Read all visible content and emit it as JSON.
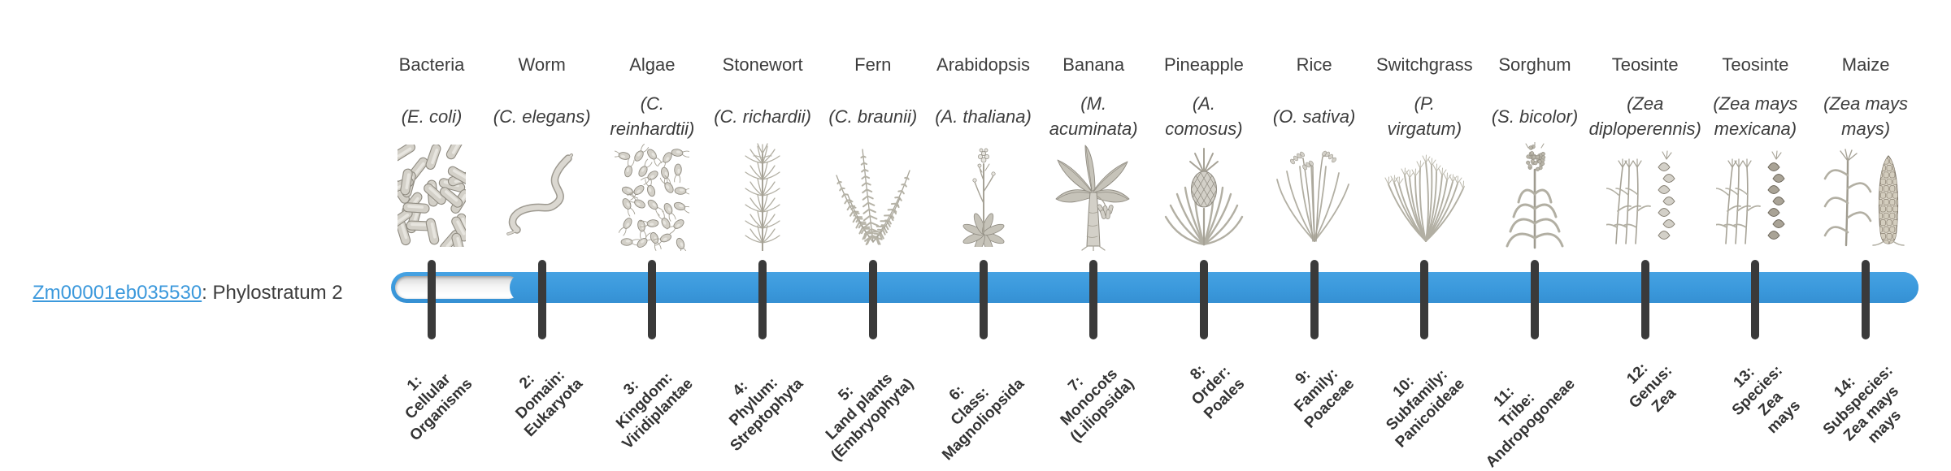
{
  "title": {
    "gene_id": "Zm00001eb035530",
    "suffix": ": Phylostratum 2"
  },
  "bar": {
    "highlighted_phylostratum": 2,
    "total_strata": 14,
    "unfilled_strata": [
      1
    ],
    "filled_strata_from": 2,
    "filled_strata_to": 14
  },
  "colors": {
    "bar": "#3b99dc",
    "tick": "#3a3a3a",
    "link": "#3c99dc",
    "text": "#3d3d3d",
    "stratum": "#333333"
  },
  "columns": [
    {
      "name": "Bacteria",
      "sci_lines": [
        "(E. coli)"
      ],
      "icon": "bacteria",
      "stratum_lines": [
        "1:",
        "Cellular",
        "Organisms"
      ]
    },
    {
      "name": "Worm",
      "sci_lines": [
        "(C. elegans)"
      ],
      "icon": "worm",
      "stratum_lines": [
        "2:",
        "Domain:",
        "Eukaryota"
      ]
    },
    {
      "name": "Algae",
      "sci_lines": [
        "(C.",
        "reinhardtii)"
      ],
      "icon": "algae",
      "stratum_lines": [
        "3:",
        "Kingdom:",
        "Viridiplantae"
      ]
    },
    {
      "name": "Stonewort",
      "sci_lines": [
        "(C. richardii)"
      ],
      "icon": "stonewort",
      "stratum_lines": [
        "4:",
        "Phylum:",
        "Streptophyta"
      ]
    },
    {
      "name": "Fern",
      "sci_lines": [
        "(C. braunii)"
      ],
      "icon": "fern",
      "stratum_lines": [
        "5:",
        "Land plants",
        "(Embryophyta)"
      ]
    },
    {
      "name": "Arabidopsis",
      "sci_lines": [
        "(A. thaliana)"
      ],
      "icon": "arabidopsis",
      "stratum_lines": [
        "6:",
        "Class:",
        "Magnoliopsida"
      ]
    },
    {
      "name": "Banana",
      "sci_lines": [
        "(M.",
        "acuminata)"
      ],
      "icon": "banana",
      "stratum_lines": [
        "7:",
        "Monocots",
        "(Liliopsida)"
      ]
    },
    {
      "name": "Pineapple",
      "sci_lines": [
        "(A.",
        "comosus)"
      ],
      "icon": "pineapple",
      "stratum_lines": [
        "8:",
        "Order:",
        "Poales"
      ]
    },
    {
      "name": "Rice",
      "sci_lines": [
        "(O. sativa)"
      ],
      "icon": "rice",
      "stratum_lines": [
        "9:",
        "Family:",
        "Poaceae"
      ]
    },
    {
      "name": "Switchgrass",
      "sci_lines": [
        "(P.",
        "virgatum)"
      ],
      "icon": "switchgrass",
      "stratum_lines": [
        "10:",
        "Subfamily:",
        "Panicoideae"
      ]
    },
    {
      "name": "Sorghum",
      "sci_lines": [
        "(S. bicolor)"
      ],
      "icon": "sorghum",
      "stratum_lines": [
        "11:",
        "Tribe:",
        "Andropogoneae"
      ]
    },
    {
      "name": "Teosinte",
      "sci_lines": [
        "(Zea",
        "diploperennis)"
      ],
      "icon": "teosinte-diploperennis",
      "stratum_lines": [
        "12:",
        "Genus:",
        "Zea"
      ]
    },
    {
      "name": "Teosinte",
      "sci_lines": [
        "(Zea mays",
        "mexicana)"
      ],
      "icon": "teosinte-mexicana",
      "stratum_lines": [
        "13:",
        "Species:",
        "Zea",
        "mays"
      ]
    },
    {
      "name": "Maize",
      "sci_lines": [
        "(Zea mays",
        "mays)"
      ],
      "icon": "maize",
      "stratum_lines": [
        "14:",
        "Subspecies:",
        "Zea mays",
        "mays"
      ]
    }
  ]
}
